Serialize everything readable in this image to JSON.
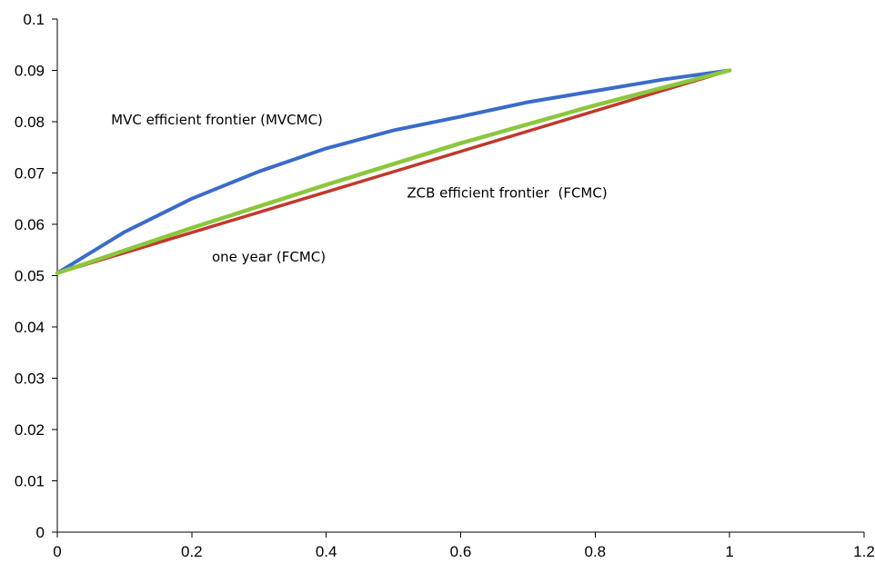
{
  "chart_data": {
    "type": "line",
    "title": "",
    "xlabel": "",
    "ylabel": "",
    "xlim": [
      0,
      1.2
    ],
    "ylim": [
      0,
      0.1
    ],
    "x_ticks": [
      0,
      0.2,
      0.4,
      0.6,
      0.8,
      1,
      1.2
    ],
    "x_tick_labels": [
      "0",
      "0.2",
      "0.4",
      "0.6",
      "0.8",
      "1",
      "1.2"
    ],
    "y_ticks": [
      0,
      0.01,
      0.02,
      0.03,
      0.04,
      0.05,
      0.06,
      0.07,
      0.08,
      0.09,
      0.1
    ],
    "y_tick_labels": [
      "0",
      "0.01",
      "0.02",
      "0.03",
      "0.04",
      "0.05",
      "0.06",
      "0.07",
      "0.08",
      "0.09",
      "0.1"
    ],
    "grid": false,
    "legend": "none",
    "series": [
      {
        "color": "#3a6bc9",
        "points": [
          [
            0,
            0.0505
          ],
          [
            0.1,
            0.0585
          ],
          [
            0.2,
            0.065
          ],
          [
            0.3,
            0.0703
          ],
          [
            0.4,
            0.0748
          ],
          [
            0.5,
            0.0783
          ],
          [
            0.6,
            0.081
          ],
          [
            0.7,
            0.0838
          ],
          [
            0.8,
            0.086
          ],
          [
            0.9,
            0.0882
          ],
          [
            1,
            0.09
          ]
        ]
      },
      {
        "color": "#c0392b",
        "points": [
          [
            0,
            0.0505
          ],
          [
            1,
            0.09
          ]
        ]
      },
      {
        "color": "#8cc63f",
        "points": [
          [
            0,
            0.0505
          ],
          [
            0.2,
            0.0593
          ],
          [
            0.4,
            0.0677
          ],
          [
            0.6,
            0.0758
          ],
          [
            0.8,
            0.0832
          ],
          [
            1,
            0.09
          ]
        ]
      }
    ],
    "annotations": [
      {
        "text": "MVC efficient frontier (MVCMC)",
        "x": 0.08,
        "y": 0.0795
      },
      {
        "text": "ZCB efficient frontier  (FCMC)",
        "x": 0.52,
        "y": 0.0652
      },
      {
        "text": "one year (FCMC)",
        "x": 0.23,
        "y": 0.0527
      }
    ]
  }
}
